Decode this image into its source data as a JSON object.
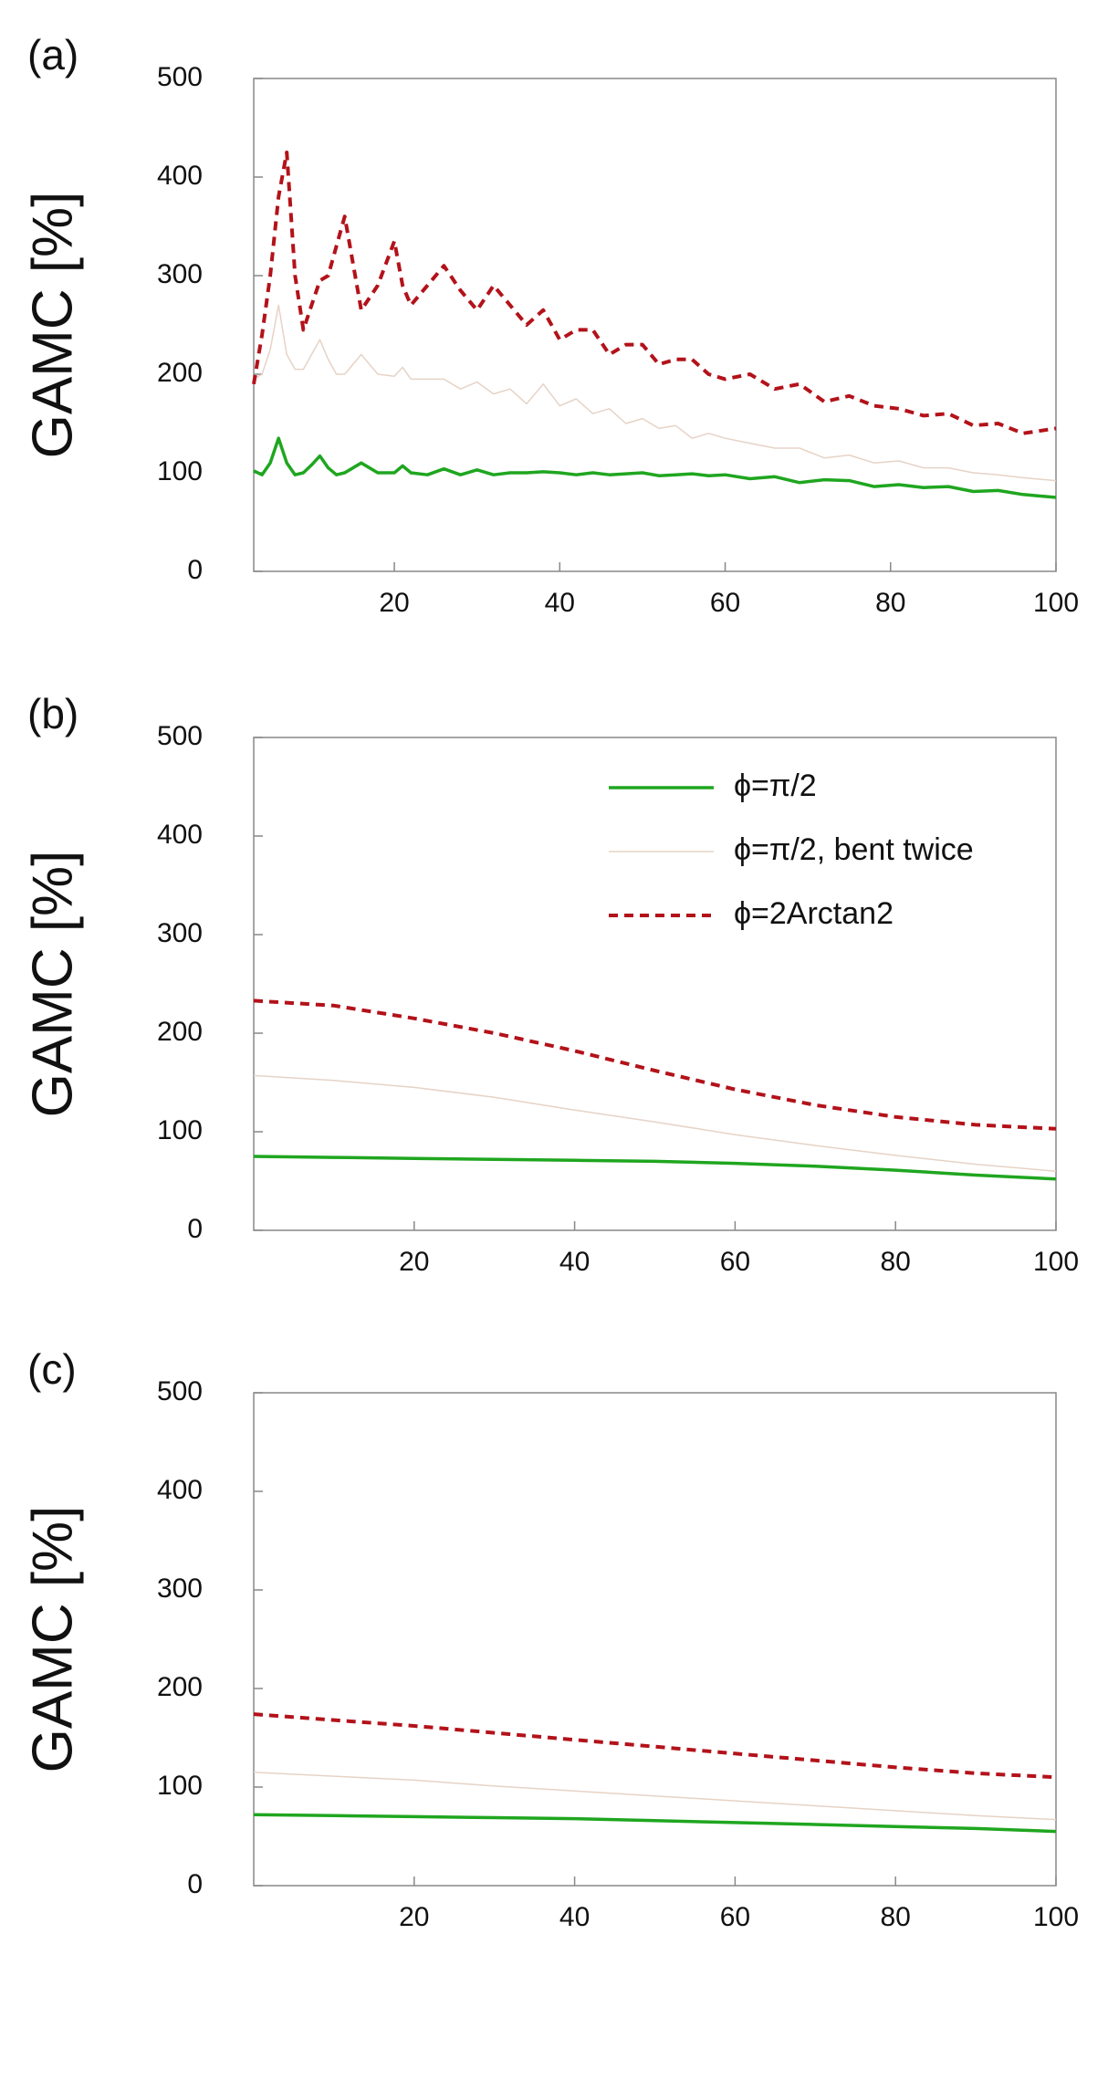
{
  "chart_data": [
    {
      "type": "line",
      "label": "(a)",
      "ylabel": "GAMC [%]",
      "x": [
        3,
        4,
        5,
        6,
        7,
        8,
        9,
        10,
        11,
        12,
        13,
        14,
        16,
        18,
        20,
        21,
        22,
        24,
        26,
        28,
        30,
        32,
        34,
        36,
        38,
        40,
        42,
        44,
        46,
        48,
        50,
        52,
        54,
        56,
        58,
        60,
        63,
        66,
        69,
        72,
        75,
        78,
        81,
        84,
        87,
        90,
        93,
        96,
        100
      ],
      "xlim": [
        3,
        100
      ],
      "xticks": [
        20,
        40,
        60,
        80,
        100
      ],
      "ylim": [
        0,
        500
      ],
      "yticks": [
        0,
        100,
        200,
        300,
        400,
        500
      ],
      "series": [
        {
          "color": "#1fa61f",
          "linewidth": 3.5,
          "dashed": false,
          "values": [
            102,
            98,
            110,
            135,
            110,
            98,
            100,
            108,
            117,
            105,
            98,
            100,
            110,
            100,
            100,
            107,
            100,
            98,
            104,
            98,
            103,
            98,
            100,
            100,
            101,
            100,
            98,
            100,
            98,
            99,
            100,
            97,
            98,
            99,
            97,
            98,
            94,
            96,
            90,
            93,
            92,
            86,
            88,
            85,
            86,
            81,
            82,
            78,
            75
          ]
        },
        {
          "color": "#e6d3c6",
          "linewidth": 1.5,
          "dashed": false,
          "values": [
            195,
            200,
            225,
            270,
            220,
            205,
            205,
            220,
            235,
            215,
            200,
            200,
            220,
            200,
            198,
            207,
            195,
            195,
            195,
            185,
            192,
            180,
            185,
            170,
            190,
            168,
            175,
            160,
            165,
            150,
            155,
            145,
            148,
            135,
            140,
            135,
            130,
            125,
            125,
            115,
            118,
            110,
            112,
            105,
            105,
            100,
            98,
            95,
            92
          ]
        },
        {
          "color": "#b3121a",
          "linewidth": 4,
          "dashed": true,
          "values": [
            190,
            240,
            300,
            380,
            425,
            300,
            245,
            270,
            295,
            300,
            330,
            360,
            265,
            290,
            335,
            290,
            270,
            290,
            310,
            285,
            265,
            290,
            270,
            250,
            265,
            235,
            245,
            245,
            220,
            230,
            230,
            210,
            215,
            215,
            200,
            195,
            200,
            185,
            190,
            172,
            178,
            168,
            165,
            158,
            160,
            148,
            150,
            140,
            145
          ]
        }
      ]
    },
    {
      "type": "line",
      "label": "(b)",
      "ylabel": "GAMC [%]",
      "legend": "upper right",
      "x": [
        0,
        10,
        20,
        30,
        40,
        50,
        60,
        70,
        80,
        90,
        100
      ],
      "xlim": [
        0,
        100
      ],
      "xticks": [
        20,
        40,
        60,
        80,
        100
      ],
      "ylim": [
        0,
        500
      ],
      "yticks": [
        0,
        100,
        200,
        300,
        400,
        500
      ],
      "series": [
        {
          "name": "ϕ=π/2",
          "color": "#1fa61f",
          "linewidth": 3.5,
          "dashed": false,
          "values": [
            75,
            74,
            73,
            72,
            71,
            70,
            68,
            65,
            61,
            56,
            52
          ]
        },
        {
          "name": "ϕ=π/2, bent twice",
          "color": "#e6d3c6",
          "linewidth": 1.5,
          "dashed": false,
          "values": [
            157,
            152,
            145,
            135,
            122,
            110,
            97,
            86,
            76,
            67,
            60
          ]
        },
        {
          "name": "ϕ=2Arctan2",
          "color": "#b3121a",
          "linewidth": 4,
          "dashed": true,
          "values": [
            233,
            228,
            215,
            200,
            182,
            162,
            143,
            127,
            115,
            107,
            103
          ]
        }
      ]
    },
    {
      "type": "line",
      "label": "(c)",
      "ylabel": "GAMC [%]",
      "x": [
        0,
        10,
        20,
        30,
        40,
        50,
        60,
        70,
        80,
        90,
        100
      ],
      "xlim": [
        0,
        100
      ],
      "xticks": [
        20,
        40,
        60,
        80,
        100
      ],
      "ylim": [
        0,
        500
      ],
      "yticks": [
        0,
        100,
        200,
        300,
        400,
        500
      ],
      "series": [
        {
          "color": "#1fa61f",
          "linewidth": 3.5,
          "dashed": false,
          "values": [
            72,
            71,
            70,
            69,
            68,
            66,
            64,
            62,
            60,
            58,
            55
          ]
        },
        {
          "color": "#e6d3c6",
          "linewidth": 1.5,
          "dashed": false,
          "values": [
            115,
            111,
            107,
            101,
            96,
            91,
            86,
            81,
            76,
            71,
            67
          ]
        },
        {
          "color": "#b3121a",
          "linewidth": 4,
          "dashed": true,
          "values": [
            174,
            168,
            162,
            155,
            148,
            141,
            134,
            127,
            120,
            114,
            110
          ]
        }
      ]
    }
  ]
}
